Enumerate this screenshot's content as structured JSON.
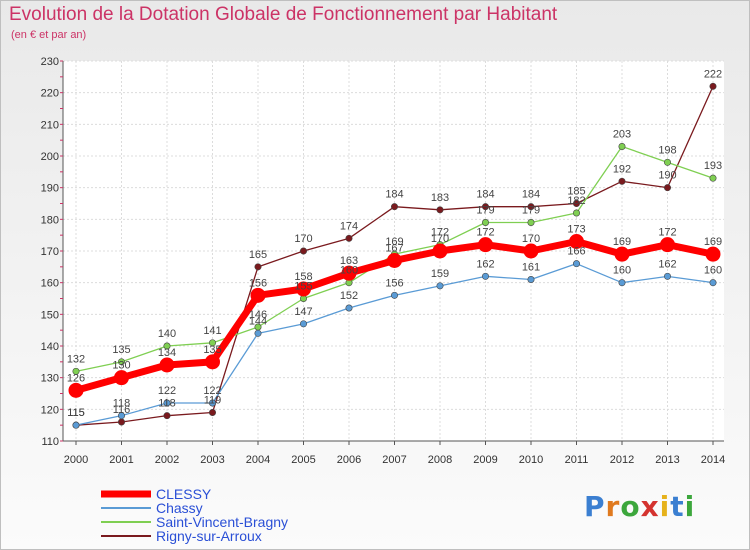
{
  "title": "Evolution de la Dotation Globale de Fonctionnement par Habitant",
  "subtitle": "(en € et par an)",
  "logo": "Proxiti",
  "chart_data": {
    "type": "line",
    "x": [
      2000,
      2001,
      2002,
      2003,
      2004,
      2005,
      2006,
      2007,
      2008,
      2009,
      2010,
      2011,
      2012,
      2013,
      2014
    ],
    "ylim": [
      110,
      230
    ],
    "yticks": [
      110,
      120,
      130,
      140,
      150,
      160,
      170,
      180,
      190,
      200,
      210,
      220,
      230
    ],
    "grid": true,
    "legend": "bottom-left",
    "series": [
      {
        "name": "Rigny-sur-Arroux",
        "color": "#7a1a1e",
        "values": [
          115,
          116,
          118,
          119,
          165,
          170,
          174,
          184,
          183,
          184,
          184,
          185,
          192,
          190,
          222
        ]
      },
      {
        "name": "Saint-Vincent-Bragny",
        "color": "#7fcf52",
        "values": [
          132,
          135,
          140,
          141,
          146,
          155,
          160,
          169,
          172,
          179,
          179,
          182,
          203,
          198,
          193
        ]
      },
      {
        "name": "Chassy",
        "color": "#5a9bd5",
        "values": [
          115,
          118,
          122,
          122,
          144,
          147,
          152,
          156,
          159,
          162,
          161,
          166,
          160,
          162,
          160
        ]
      },
      {
        "name": "CLESSY",
        "color": "#ff0000",
        "values": [
          126,
          130,
          134,
          135,
          156,
          158,
          163,
          167,
          170,
          172,
          170,
          173,
          169,
          172,
          169
        ]
      }
    ]
  }
}
